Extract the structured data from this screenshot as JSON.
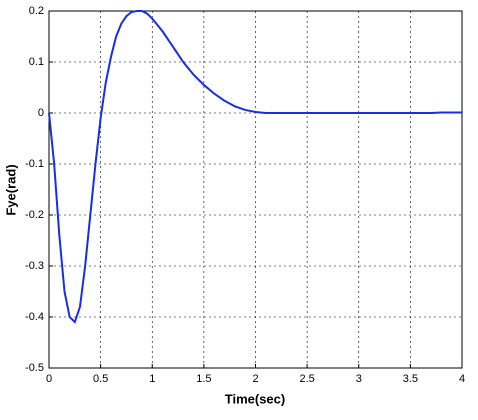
{
  "chart_data": {
    "type": "line",
    "xlabel": "Time(sec)",
    "ylabel": "Fye(rad)",
    "x": [
      0,
      0.05,
      0.1,
      0.15,
      0.2,
      0.25,
      0.3,
      0.35,
      0.4,
      0.45,
      0.5,
      0.55,
      0.6,
      0.65,
      0.7,
      0.75,
      0.8,
      0.85,
      0.9,
      0.95,
      1.0,
      1.1,
      1.2,
      1.3,
      1.4,
      1.5,
      1.6,
      1.7,
      1.8,
      1.9,
      2.0,
      2.1,
      2.5,
      3.0,
      3.5,
      3.7,
      3.8,
      4.0
    ],
    "series": [
      {
        "color": "#1a2ee0",
        "values": [
          0,
          -0.1,
          -0.24,
          -0.35,
          -0.4,
          -0.41,
          -0.38,
          -0.3,
          -0.2,
          -0.1,
          -0.01,
          0.06,
          0.11,
          0.15,
          0.175,
          0.19,
          0.198,
          0.2,
          0.2,
          0.195,
          0.185,
          0.16,
          0.13,
          0.1,
          0.075,
          0.055,
          0.038,
          0.024,
          0.013,
          0.006,
          0.002,
          0,
          0,
          0,
          0,
          0,
          0.001,
          0.001
        ]
      }
    ],
    "xlim": [
      0,
      4
    ],
    "ylim": [
      -0.5,
      0.2
    ],
    "xticks": [
      0,
      0.5,
      1,
      1.5,
      2,
      2.5,
      3,
      3.5,
      4
    ],
    "yticks": [
      -0.5,
      -0.4,
      -0.3,
      -0.2,
      -0.1,
      0,
      0.1,
      0.2
    ],
    "grid": true
  }
}
